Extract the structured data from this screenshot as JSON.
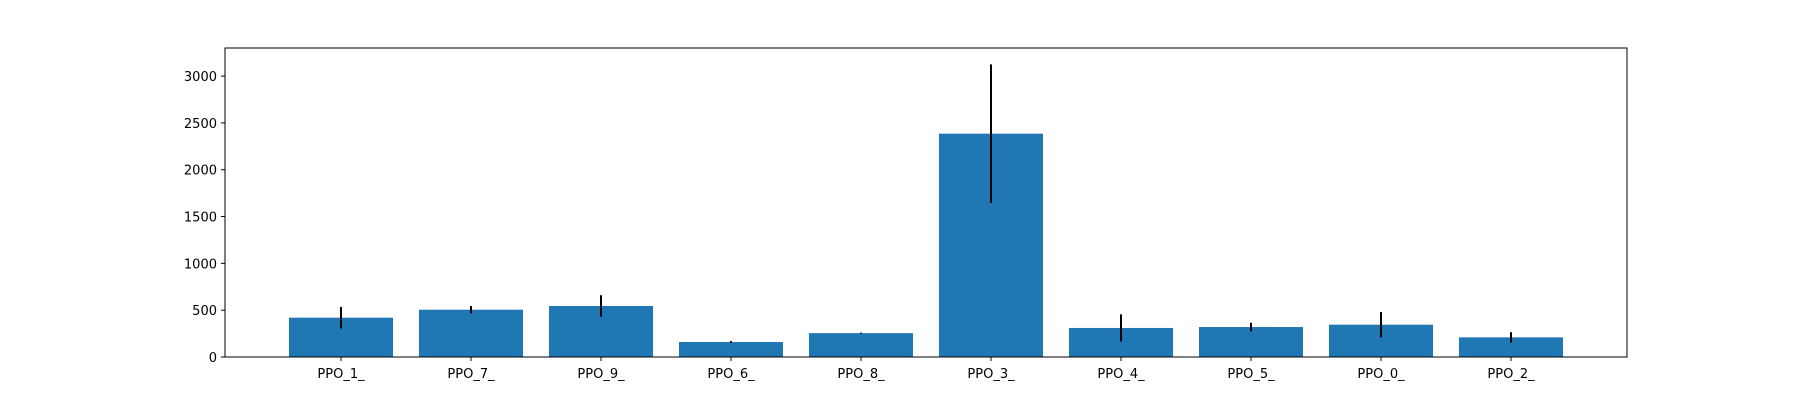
{
  "chart_data": {
    "type": "bar",
    "title": "",
    "xlabel": "",
    "ylabel": "",
    "categories": [
      "PPO_1_",
      "PPO_7_",
      "PPO_9_",
      "PPO_6_",
      "PPO_8_",
      "PPO_3_",
      "PPO_4_",
      "PPO_5_",
      "PPO_0_",
      "PPO_2_"
    ],
    "values": [
      420,
      505,
      545,
      160,
      255,
      2385,
      310,
      320,
      345,
      210
    ],
    "errors": [
      115,
      40,
      115,
      10,
      5,
      740,
      145,
      45,
      135,
      55
    ],
    "ylim": [
      0,
      3300
    ],
    "yticks": [
      0,
      500,
      1000,
      1500,
      2000,
      2500,
      3000
    ],
    "ytick_labels": [
      "0",
      "500",
      "1000",
      "1500",
      "2000",
      "2500",
      "3000"
    ],
    "grid": false,
    "colors": {
      "bar": "#1f77b4",
      "error_bar": "#000000",
      "axes": "#000000"
    }
  }
}
